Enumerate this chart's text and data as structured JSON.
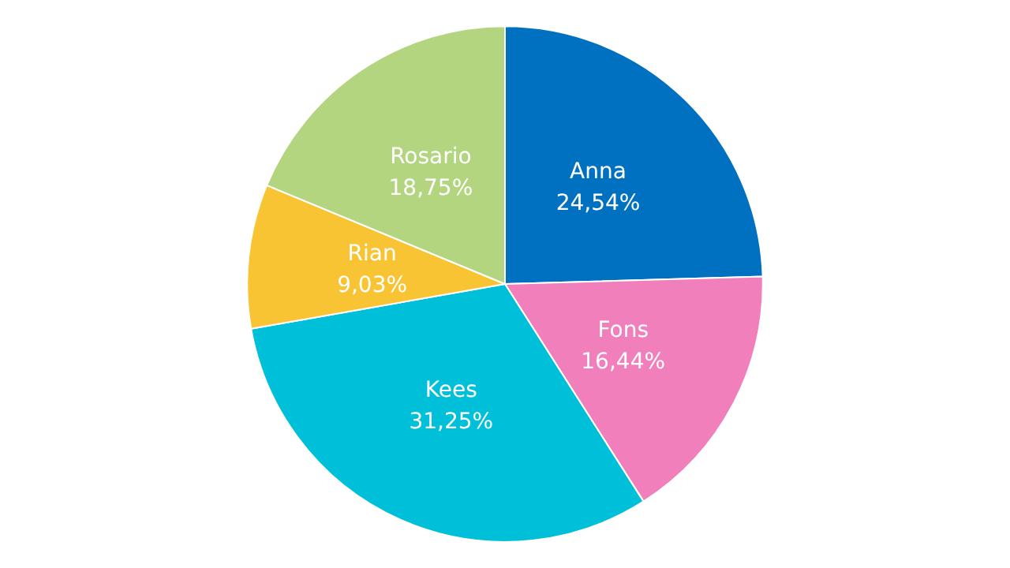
{
  "chart_data": {
    "type": "pie",
    "categories": [
      "Anna",
      "Fons",
      "Kees",
      "Rian",
      "Rosario"
    ],
    "values": [
      24.54,
      16.44,
      31.25,
      9.03,
      18.75
    ],
    "value_labels": [
      "24,54%",
      "16,44%",
      "31,25%",
      "9,03%",
      "18,75%"
    ],
    "colors": [
      "#0070c0",
      "#f07fbc",
      "#00bfd8",
      "#f9c433",
      "#b3d57f"
    ],
    "legend": false
  }
}
